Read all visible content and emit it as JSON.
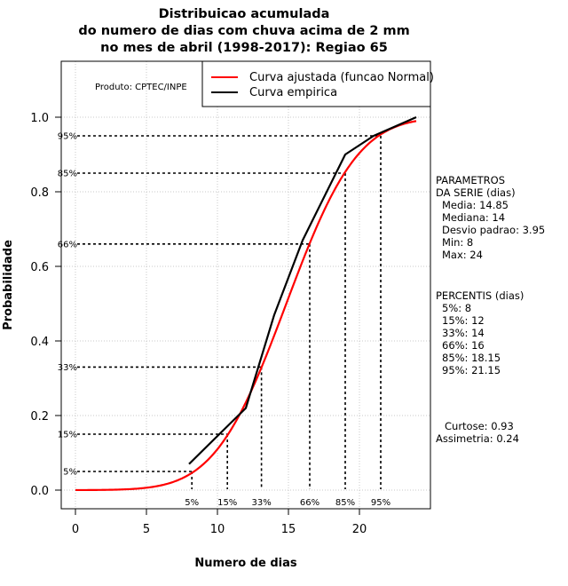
{
  "chart_data": {
    "type": "line",
    "title_lines": [
      "Distribuicao acumulada",
      "do numero de dias com chuva acima de 2 mm",
      "no mes de abril (1998-2017): Regiao 65"
    ],
    "xlabel": "Numero de dias",
    "ylabel": "Probabilidade",
    "xlim": [
      -1,
      25
    ],
    "ylim": [
      -0.05,
      1.15
    ],
    "x_ticks": [
      0,
      5,
      10,
      15,
      20
    ],
    "y_ticks": [
      0.0,
      0.2,
      0.4,
      0.6,
      0.8,
      1.0
    ],
    "y_tick_labels": [
      "0.0",
      "0.2",
      "0.4",
      "0.6",
      "0.8",
      "1.0"
    ],
    "producer_label": "Produto: CPTEC/INPE",
    "legend": [
      {
        "label": "Curva ajustada (funcao Normal)",
        "color": "#ff0000"
      },
      {
        "label": "Curva empirica",
        "color": "#000000"
      }
    ],
    "fitted_normal": {
      "mean": 14.85,
      "sd": 3.95,
      "x_start": 0,
      "x_end": 24,
      "color": "#ff0000"
    },
    "series": [
      {
        "name": "Curva empirica",
        "color": "#000000",
        "x": [
          8,
          12,
          14,
          16,
          19,
          21,
          24
        ],
        "y": [
          0.07,
          0.22,
          0.47,
          0.67,
          0.9,
          0.95,
          1.0
        ]
      }
    ],
    "percentiles": [
      {
        "label": "5%",
        "y_label": "5%",
        "p": 0.05,
        "x": 8.2
      },
      {
        "label": "15%",
        "y_label": "15%",
        "p": 0.15,
        "x": 10.7
      },
      {
        "label": "33%",
        "y_label": "33%",
        "p": 0.33,
        "x": 13.1
      },
      {
        "label": "66%",
        "y_label": "66%",
        "p": 0.66,
        "x": 16.5
      },
      {
        "label": "85%",
        "y_label": "85%",
        "p": 0.85,
        "x": 19.0
      },
      {
        "label": "95%",
        "y_label": "95%",
        "p": 0.95,
        "x": 21.5
      }
    ],
    "side_text": {
      "params_header": [
        "PARAMETROS",
        "DA SERIE (dias)"
      ],
      "params": [
        "Media: 14.85",
        "Mediana: 14",
        "Desvio padrao: 3.95",
        "Min: 8",
        "Max: 24"
      ],
      "percentis_header": "PERCENTIS (dias)",
      "percentis": [
        "5%: 8",
        "15%: 12",
        "33%: 14",
        "66%: 16",
        "85%: 18.15",
        "95%: 21.15"
      ],
      "curtose": "Curtose: 0.93",
      "assimetria": "Assimetria: 0.24"
    }
  }
}
